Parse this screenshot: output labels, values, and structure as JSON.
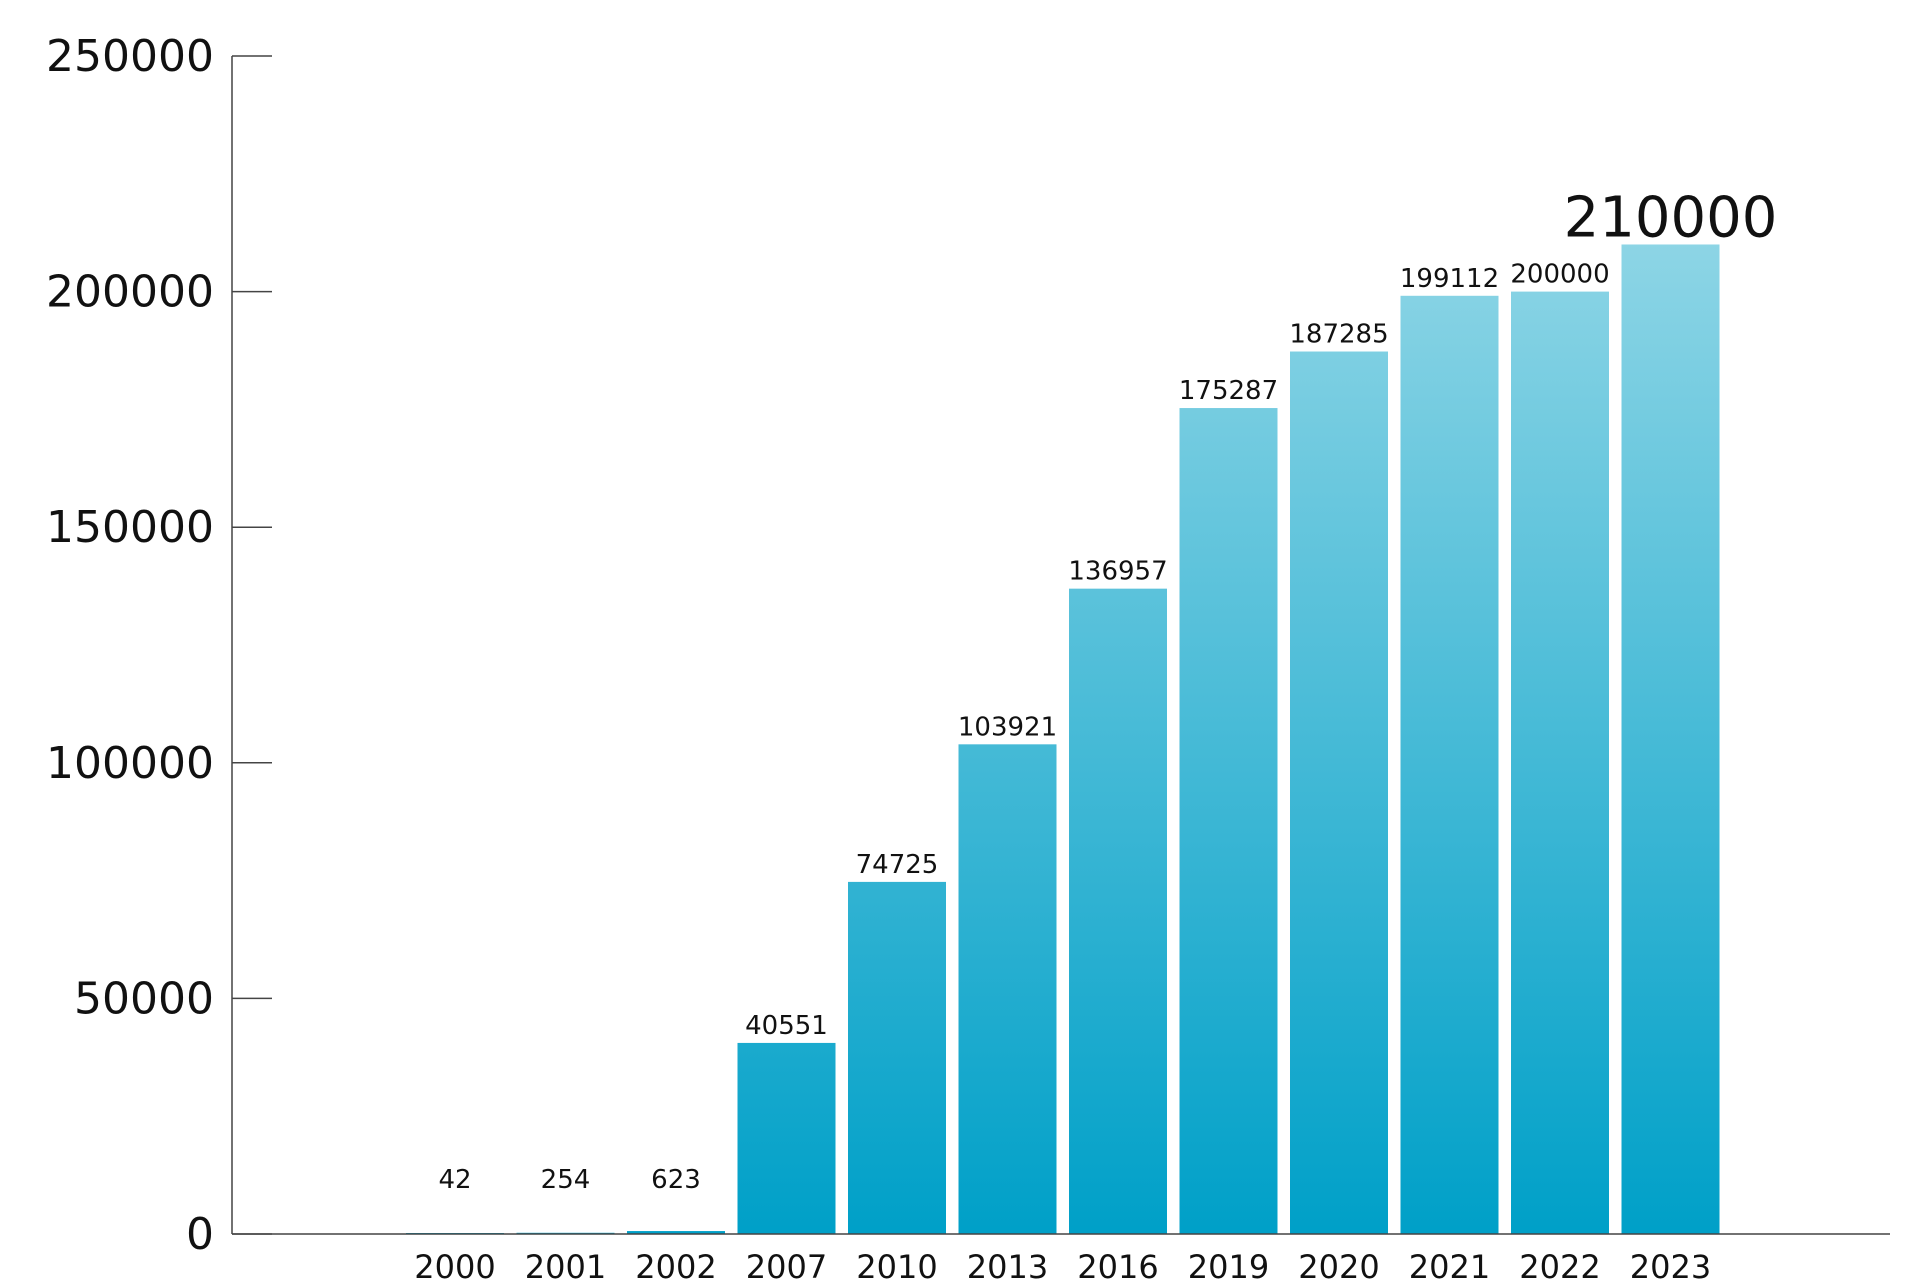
{
  "chart_data": {
    "type": "bar",
    "categories": [
      "2000",
      "2001",
      "2002",
      "2007",
      "2010",
      "2013",
      "2016",
      "2019",
      "2020",
      "2021",
      "2022",
      "2023"
    ],
    "values": [
      42,
      254,
      623,
      40551,
      74725,
      103921,
      136957,
      175287,
      187285,
      199112,
      200000,
      210000
    ],
    "value_labels": [
      "42",
      "254",
      "623",
      "40551",
      "74725",
      "103921",
      "136957",
      "175287",
      "187285",
      "199112",
      "200000",
      "210000"
    ],
    "ylim": [
      0,
      250000
    ],
    "yticks": [
      0,
      50000,
      100000,
      150000,
      200000,
      250000
    ],
    "ytick_labels": [
      "0",
      "50000",
      "100000",
      "150000",
      "200000",
      "250000"
    ],
    "title": "",
    "xlabel": "",
    "ylabel": "",
    "grid": false,
    "highlight_index": 11,
    "colors": {
      "bar_bottom": "#00a0c8",
      "bar_top": "#a8dfeb",
      "highlight_label": "#f08080",
      "axis": "#444444"
    }
  }
}
